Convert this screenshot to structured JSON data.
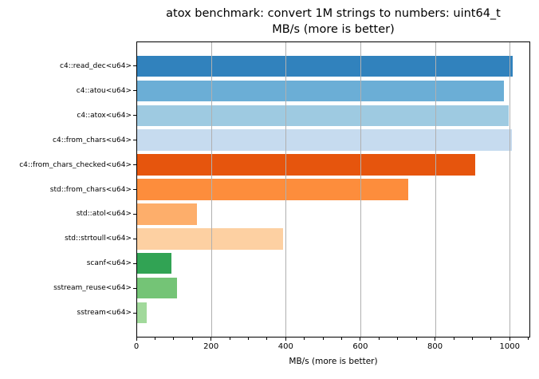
{
  "chart_data": {
    "type": "bar",
    "orientation": "horizontal",
    "title_line1": "atox benchmark: convert 1M strings to numbers: uint64_t",
    "title_line2": "MB/s (more is better)",
    "xlabel": "MB/s (more is better)",
    "ylabel": "",
    "categories": [
      "c4::read_dec<u64>",
      "c4::atou<u64>",
      "c4::atox<u64>",
      "c4::from_chars<u64>",
      "c4::from_chars_checked<u64>",
      "std::from_chars<u64>",
      "std::atol<u64>",
      "std::strtoull<u64>",
      "scanf<u64>",
      "sstream_reuse<u64>",
      "sstream<u64>"
    ],
    "values": [
      1005,
      982,
      996,
      1004,
      906,
      727,
      160,
      390,
      92,
      107,
      26
    ],
    "bar_colors": [
      "#3182bd",
      "#6baed6",
      "#9ecae1",
      "#c6dbef",
      "#e6550d",
      "#fd8d3c",
      "#fdae6b",
      "#fdd0a2",
      "#31a354",
      "#74c476",
      "#a1d99b"
    ],
    "xlim": [
      0,
      1055
    ],
    "xticks": [
      0,
      200,
      400,
      600,
      800,
      1000
    ],
    "xtick_labels": [
      "0",
      "200",
      "400",
      "600",
      "800",
      "1000"
    ],
    "minor_tick_step": 50,
    "grid": {
      "axis": "x",
      "color": "#b0b0b0",
      "above_bars": true
    },
    "legend": "none",
    "colors": {
      "spine": "#000000",
      "text": "#000000",
      "background": "#ffffff"
    }
  }
}
